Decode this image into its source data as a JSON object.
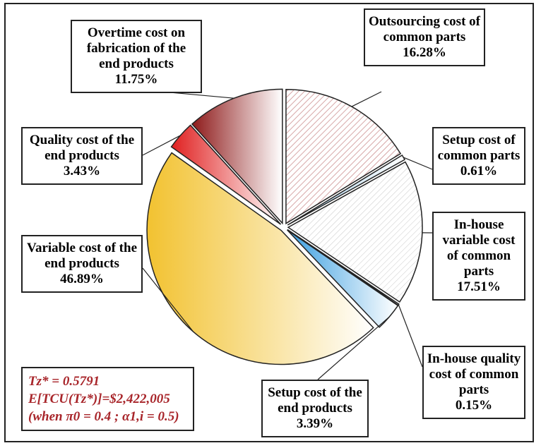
{
  "chart_data": {
    "type": "pie",
    "categories": [
      "Outsourcing cost of common parts",
      "Setup cost of common parts",
      "In-house variable cost of common parts",
      "In-house quality cost of common parts",
      "Setup cost of the end products",
      "Variable cost of the end products",
      "Quality cost of the end products",
      "Overtime cost on fabrication of the end products"
    ],
    "values": [
      16.28,
      0.61,
      17.51,
      0.15,
      3.39,
      46.89,
      3.43,
      11.75
    ],
    "value_labels": [
      "16.28%",
      "0.61%",
      "17.51%",
      "0.15%",
      "3.39%",
      "46.89%",
      "3.43%",
      "11.75%"
    ],
    "colors": [
      "#c98a8a",
      "#9ec9e6",
      "#c8c8c8",
      "#b02020",
      "#3a9ee0",
      "#f2c230",
      "#e02020",
      "#8e1a1a"
    ],
    "annotations": [
      "Tz* = 0.5791",
      "E[TCU(Tz*)]=$2,422,005",
      "(when π0 = 0.4 ; α1,i = 0.5)"
    ]
  }
}
